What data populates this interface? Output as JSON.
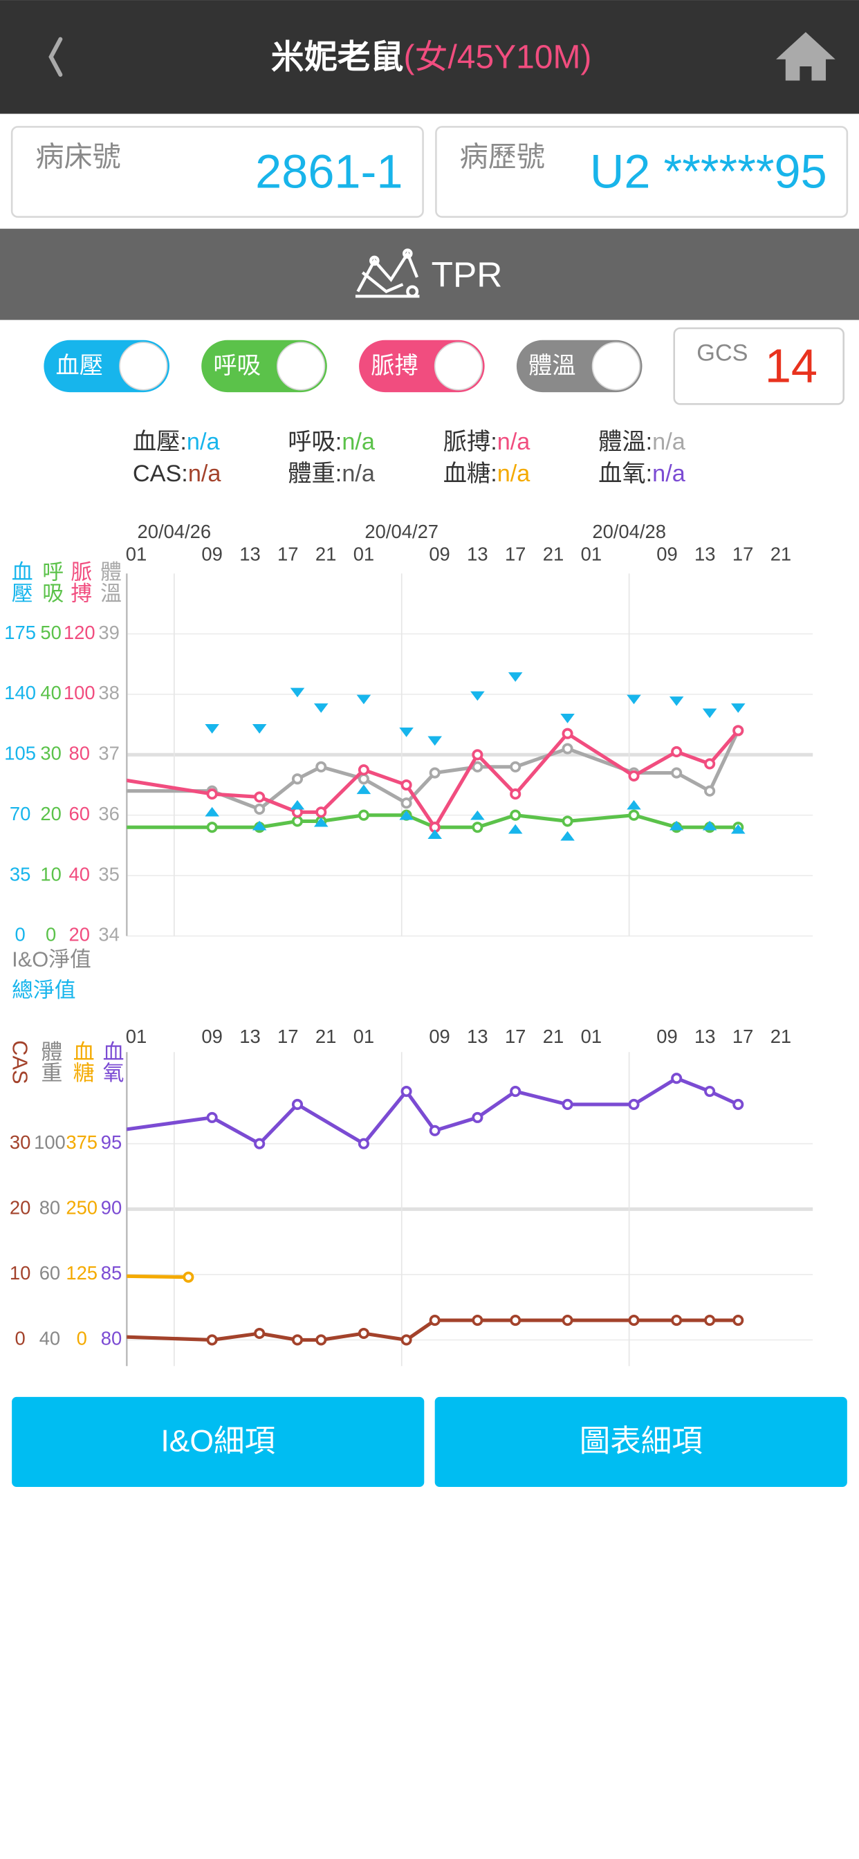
{
  "header": {
    "title": "米妮老鼠",
    "subtitle": "(女/45Y10M)"
  },
  "cards": [
    {
      "label": "病床號",
      "value": "2861-1"
    },
    {
      "label": "病歷號",
      "value": "U2 ******95"
    }
  ],
  "section_title": "TPR",
  "toggles": [
    {
      "label": "血壓",
      "color": "#17b5ec",
      "on": true
    },
    {
      "label": "呼吸",
      "color": "#5bc24a",
      "on": true
    },
    {
      "label": "脈搏",
      "color": "#f14d7f",
      "on": true
    },
    {
      "label": "體溫",
      "color": "#8a8a8a",
      "on": true
    }
  ],
  "gcs": {
    "label": "GCS",
    "value": 14
  },
  "summary": [
    {
      "label": "血壓:",
      "value": "n/a",
      "color": "#17b5ec"
    },
    {
      "label": "呼吸:",
      "value": "n/a",
      "color": "#5bc24a"
    },
    {
      "label": "脈搏:",
      "value": "n/a",
      "color": "#f14d7f"
    },
    {
      "label": "體溫:",
      "value": "n/a",
      "color": "#a8a8a8"
    },
    {
      "label": "CAS:",
      "value": "n/a",
      "color": "#a3422b"
    },
    {
      "label": "體重:",
      "value": "n/a",
      "color": "#555555"
    },
    {
      "label": "血糖:",
      "value": "n/a",
      "color": "#f4aa00"
    },
    {
      "label": "血氧:",
      "value": "n/a",
      "color": "#7b4bd3"
    }
  ],
  "io_labels": [
    {
      "text": "I&O淨值",
      "color": "#8a8a8a"
    },
    {
      "text": "總淨值",
      "color": "#17b5ec"
    }
  ],
  "chart_data": [
    {
      "type": "line",
      "xlim": [
        0,
        72
      ],
      "xticks": [
        {
          "value": 1,
          "label": "01"
        },
        {
          "value": 9,
          "label": "09"
        },
        13,
        17,
        21,
        {
          "value": 25,
          "label": "01"
        },
        {
          "value": 33,
          "label": "09"
        },
        {
          "value": 37,
          "label": "13"
        },
        {
          "value": 41,
          "label": "17"
        },
        {
          "value": 45,
          "label": "21"
        },
        {
          "value": 49,
          "label": "01"
        },
        {
          "value": 57,
          "label": "09"
        },
        {
          "value": 61,
          "label": "13"
        },
        {
          "value": 65,
          "label": "17"
        },
        {
          "value": 69,
          "label": "21"
        }
      ],
      "dates": [
        {
          "value": 5,
          "label": "20/04/26"
        },
        {
          "value": 29,
          "label": "20/04/27"
        },
        {
          "value": 53,
          "label": "20/04/28"
        }
      ],
      "axes": [
        {
          "name": "血壓",
          "color": "#17b5ec",
          "ylim": [
            0,
            210
          ],
          "yticks": [
            0,
            35,
            70,
            105,
            140,
            175
          ]
        },
        {
          "name": "呼吸",
          "color": "#5bc24a",
          "ylim": [
            0,
            60
          ],
          "yticks": [
            0,
            10,
            20,
            30,
            40,
            50
          ]
        },
        {
          "name": "脈搏",
          "color": "#f14d7f",
          "ylim": [
            20,
            140
          ],
          "yticks": [
            20,
            40,
            60,
            80,
            100,
            120
          ]
        },
        {
          "name": "體溫",
          "color": "#a8a8a8",
          "ylim": [
            34,
            40
          ],
          "yticks": [
            34,
            35,
            36,
            37,
            38,
            39
          ]
        }
      ],
      "grid_axis": 3,
      "reference_line": 37,
      "x": [
        -1,
        9,
        14,
        18,
        20.5,
        25,
        29.5,
        32.5,
        37,
        41,
        46.5,
        53.5,
        58,
        61.5,
        64.5
      ],
      "series": [
        {
          "axis": 3,
          "color": "#a8a8a8",
          "line": true,
          "marker": "circle",
          "values": [
            36.4,
            36.4,
            36.1,
            36.6,
            36.8,
            36.6,
            36.2,
            36.7,
            36.8,
            36.8,
            37.1,
            36.7,
            36.7,
            36.4,
            37.4
          ]
        },
        {
          "axis": 1,
          "color": "#5bc24a",
          "line": true,
          "marker": "circle",
          "values": [
            18,
            18,
            18,
            19,
            19,
            20,
            20,
            18,
            18,
            20,
            19,
            20,
            18,
            18,
            18
          ]
        },
        {
          "axis": 2,
          "color": "#f14d7f",
          "line": true,
          "marker": "circle",
          "values": [
            72,
            67,
            66,
            61,
            61,
            75,
            70,
            56,
            80,
            67,
            87,
            73,
            81,
            77,
            88
          ]
        },
        {
          "axis": 0,
          "color": "#17b5ec",
          "line": false,
          "marker": "triangle-down",
          "values": [
            null,
            120,
            120,
            141,
            132,
            137,
            118,
            113,
            139,
            150,
            126,
            137,
            136,
            129,
            132
          ]
        },
        {
          "axis": 0,
          "color": "#17b5ec",
          "line": false,
          "marker": "triangle-up",
          "values": [
            null,
            72,
            64,
            76,
            66,
            85,
            70,
            59,
            70,
            62,
            58,
            76,
            64,
            64,
            62
          ]
        }
      ]
    },
    {
      "type": "line",
      "xlim": [
        0,
        72
      ],
      "xticks": [
        {
          "value": 1,
          "label": "01"
        },
        {
          "value": 9,
          "label": "09"
        },
        13,
        17,
        21,
        {
          "value": 25,
          "label": "01"
        },
        {
          "value": 33,
          "label": "09"
        },
        {
          "value": 37,
          "label": "13"
        },
        {
          "value": 41,
          "label": "17"
        },
        {
          "value": 45,
          "label": "21"
        },
        {
          "value": 49,
          "label": "01"
        },
        {
          "value": 57,
          "label": "09"
        },
        {
          "value": 61,
          "label": "13"
        },
        {
          "value": 65,
          "label": "17"
        },
        {
          "value": 69,
          "label": "21"
        }
      ],
      "axes": [
        {
          "name": "CAS",
          "color": "#a3422b",
          "ylim": [
            -4,
            44
          ],
          "yticks": [
            0,
            10,
            20,
            30
          ]
        },
        {
          "name": "體重",
          "color": "#888888",
          "ylim": [
            32,
            128
          ],
          "yticks": [
            40,
            60,
            80,
            100
          ]
        },
        {
          "name": "血糖",
          "color": "#f4aa00",
          "ylim": [
            -50,
            550
          ],
          "yticks": [
            0,
            125,
            250,
            375
          ]
        },
        {
          "name": "血氧",
          "color": "#7b4bd3",
          "ylim": [
            78,
            102
          ],
          "yticks": [
            80,
            85,
            90,
            95
          ]
        }
      ],
      "grid_axis": 3,
      "reference_line": 90,
      "series": [
        {
          "axis": 0,
          "color": "#a3422b",
          "line": true,
          "marker": "circle",
          "x": [
            -1,
            9,
            14,
            18,
            20.5,
            25,
            29.5,
            32.5,
            37,
            41,
            46.5,
            53.5,
            58,
            61.5,
            64.5
          ],
          "values": [
            0.5,
            0,
            1,
            0,
            0,
            1,
            0,
            3,
            3,
            3,
            3,
            3,
            3,
            3,
            3
          ]
        },
        {
          "axis": 2,
          "color": "#f4aa00",
          "line": true,
          "marker": "circle",
          "x": [
            -1,
            6.5
          ],
          "values": [
            122,
            120
          ]
        },
        {
          "axis": 3,
          "color": "#7b4bd3",
          "line": true,
          "marker": "circle",
          "x": [
            -1,
            9,
            14,
            18,
            25,
            29.5,
            32.5,
            37,
            41,
            46.5,
            53.5,
            58,
            61.5,
            64.5
          ],
          "values": [
            96,
            97,
            95,
            98,
            95,
            99,
            96,
            97,
            99,
            98,
            98,
            100,
            99,
            98
          ]
        }
      ]
    }
  ],
  "buttons": [
    "I&O細項",
    "圖表細項"
  ]
}
